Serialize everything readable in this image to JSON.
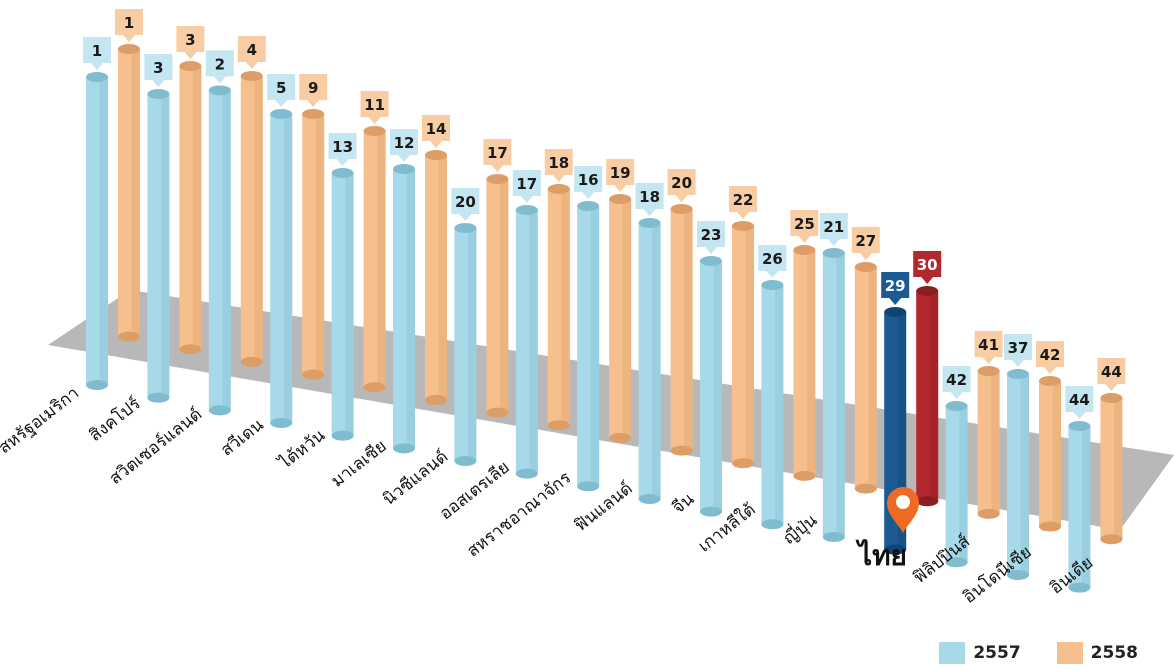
{
  "chart_data": {
    "type": "bar",
    "categories": [
      "สหรัฐอเมริกา",
      "สิงคโปร์",
      "สวิตเซอร์แลนด์",
      "สวีเดน",
      "ไต้หวัน",
      "มาเลเซีย",
      "นิวซีแลนด์",
      "ออสเตรเลีย",
      "สหราชอาณาจักร",
      "ฟินแลนด์",
      "จีน",
      "เกาหลีใต้",
      "ญี่ปุ่น",
      "ไทย",
      "ฟิลิปปินส์",
      "อินโดนีเซีย",
      "อินเดีย"
    ],
    "series": [
      {
        "name": "2557",
        "values": [
          1,
          3,
          2,
          5,
          13,
          12,
          20,
          17,
          16,
          18,
          23,
          26,
          21,
          29,
          42,
          37,
          44
        ]
      },
      {
        "name": "2558",
        "values": [
          1,
          3,
          4,
          9,
          11,
          14,
          17,
          18,
          19,
          20,
          22,
          25,
          27,
          30,
          41,
          42,
          44
        ]
      }
    ],
    "highlight_category": "ไทย",
    "colors": {
      "2557": "#a8d9e8",
      "2558": "#f6c08e",
      "highlight_2557": "#1b5a93",
      "highlight_2558": "#b3282d",
      "floor": "#b8b8b8",
      "pin": "#ef6a22"
    },
    "icons": {
      "location": "location-pin-icon"
    }
  },
  "legend": {
    "items": [
      {
        "label": "2557"
      },
      {
        "label": "2558"
      }
    ]
  }
}
